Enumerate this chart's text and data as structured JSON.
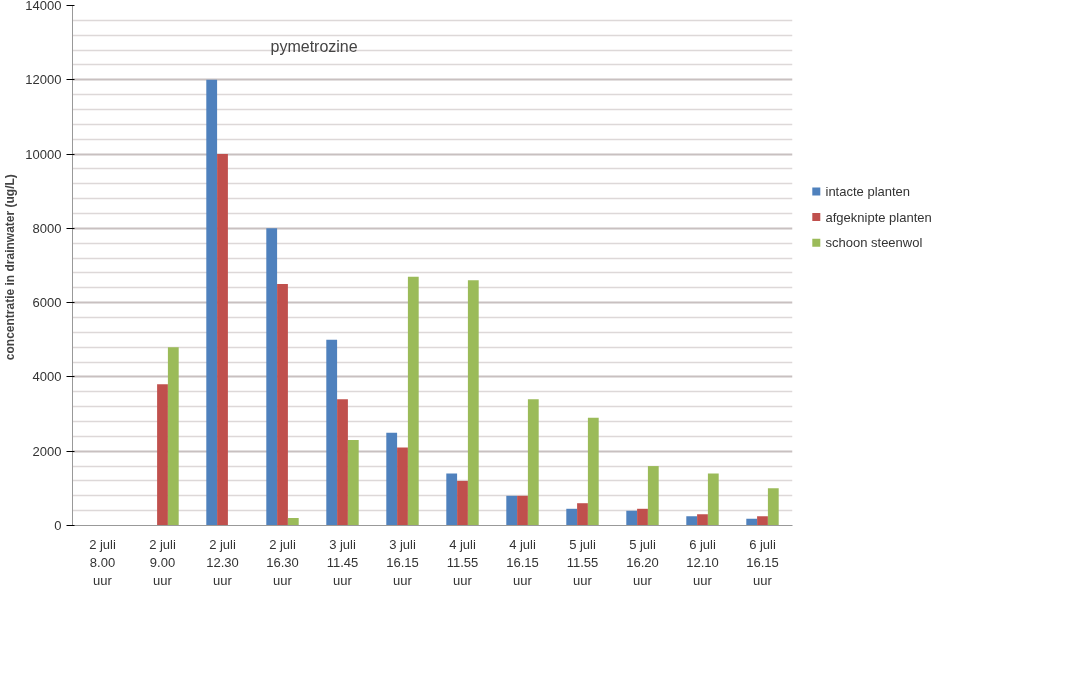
{
  "chart_data": {
    "type": "bar",
    "ylabel": "concentratie in drainwater  (ug/L)",
    "annotations": [
      "pymetrozine"
    ],
    "categories": [
      "2 juli\n8.00\nuur",
      "2 juli\n9.00\nuur",
      "2 juli\n12.30\nuur",
      "2 juli\n16.30\nuur",
      "3 juli\n11.45\nuur",
      "3 juli\n16.15\nuur",
      "4 juli\n11.55\nuur",
      "4 juli\n16.15\nuur",
      "5 juli\n11.55\nuur",
      "5 juli\n16.20\nuur",
      "6 juli\n12.10\nuur",
      "6 juli\n16.15\nuur"
    ],
    "series": [
      {
        "name": "intacte planten",
        "color": "#4f81bd",
        "values": [
          0,
          0,
          12000,
          8000,
          5000,
          2500,
          1400,
          800,
          450,
          400,
          250,
          180
        ]
      },
      {
        "name": "afgeknipte planten",
        "color": "#c0504d",
        "values": [
          0,
          3800,
          10000,
          6500,
          3400,
          2100,
          1200,
          800,
          600,
          450,
          300,
          250
        ]
      },
      {
        "name": "schoon steenwol",
        "color": "#9bbb59",
        "values": [
          0,
          4800,
          0,
          200,
          2300,
          6700,
          6600,
          3400,
          2900,
          1600,
          1400,
          1000
        ]
      }
    ],
    "ylim": [
      0,
      14000
    ],
    "yticks": [
      0,
      2000,
      4000,
      6000,
      8000,
      10000,
      12000,
      14000
    ],
    "grid": "y",
    "legend": "right"
  }
}
